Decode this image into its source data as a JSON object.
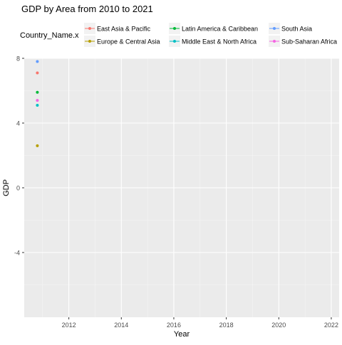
{
  "chart_data": {
    "type": "scatter",
    "title": "GDP by Area from 2010 to 2021",
    "xlabel": "Year",
    "ylabel": "GDP",
    "legend_title": "Country_Name.x",
    "legend_position": "top",
    "xlim": [
      2010.3,
      2022.3
    ],
    "ylim": [
      -8.0,
      8.0
    ],
    "x_ticks": [
      2012,
      2014,
      2016,
      2018,
      2020,
      2022
    ],
    "y_ticks": [
      -4,
      0,
      4,
      8
    ],
    "grid": true,
    "series": [
      {
        "name": "East Asia & Pacific",
        "color": "#F8766D",
        "points": [
          {
            "x": 2010.8,
            "y": 7.1
          }
        ]
      },
      {
        "name": "Europe & Central Asia",
        "color": "#B79F00",
        "points": [
          {
            "x": 2010.8,
            "y": 2.6
          }
        ]
      },
      {
        "name": "Latin America & Caribbean",
        "color": "#00BA38",
        "points": [
          {
            "x": 2010.8,
            "y": 5.9
          }
        ]
      },
      {
        "name": "Middle East & North Africa",
        "color": "#00BFC4",
        "points": [
          {
            "x": 2010.8,
            "y": 5.1
          }
        ]
      },
      {
        "name": "South Asia",
        "color": "#619CFF",
        "points": [
          {
            "x": 2010.8,
            "y": 7.8
          }
        ]
      },
      {
        "name": "Sub-Saharan Africa",
        "color": "#F564E3",
        "points": [
          {
            "x": 2010.8,
            "y": 5.4
          }
        ]
      }
    ]
  }
}
